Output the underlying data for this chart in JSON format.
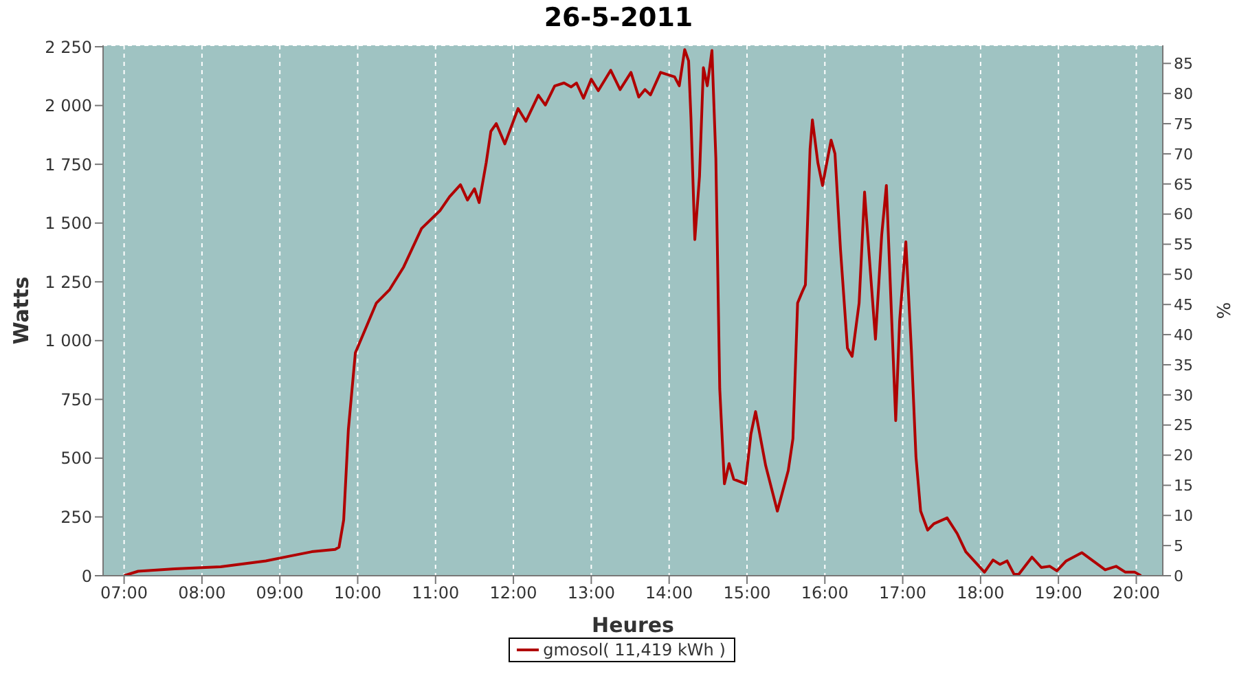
{
  "chart_data": {
    "type": "line",
    "title": "26-5-2011",
    "xlabel": "Heures",
    "ylabel": "Watts",
    "y2label": "%",
    "xlim": [
      6.73,
      20.34
    ],
    "xticks": [
      {
        "value": 7,
        "label": "07:00"
      },
      {
        "value": 8,
        "label": "08:00"
      },
      {
        "value": 9,
        "label": "09:00"
      },
      {
        "value": 10,
        "label": "10:00"
      },
      {
        "value": 11,
        "label": "11:00"
      },
      {
        "value": 12,
        "label": "12:00"
      },
      {
        "value": 13,
        "label": "13:00"
      },
      {
        "value": 14,
        "label": "14:00"
      },
      {
        "value": 15,
        "label": "15:00"
      },
      {
        "value": 16,
        "label": "16:00"
      },
      {
        "value": 17,
        "label": "17:00"
      },
      {
        "value": 18,
        "label": "18:00"
      },
      {
        "value": 19,
        "label": "19:00"
      },
      {
        "value": 20,
        "label": "20:00"
      }
    ],
    "ylim": [
      0,
      2256
    ],
    "yticks": [
      0,
      250,
      500,
      750,
      {
        "value": 1000,
        "label": "1 000"
      },
      {
        "value": 1250,
        "label": "1 250"
      },
      {
        "value": 1500,
        "label": "1 500"
      },
      {
        "value": 1750,
        "label": "1 750"
      },
      {
        "value": 2000,
        "label": "2 000"
      },
      {
        "value": 2250,
        "label": "2 250"
      }
    ],
    "y2lim": [
      0,
      88
    ],
    "y2ticks": [
      0,
      5,
      10,
      15,
      20,
      25,
      30,
      35,
      40,
      45,
      50,
      55,
      60,
      65,
      70,
      75,
      80,
      85
    ],
    "grid": true,
    "legend": "bottom",
    "marker": "none",
    "line_style": "solid",
    "series": [
      {
        "name": "gmosol( 11,419 kWh )",
        "color": "#b00000",
        "x": [
          7.0,
          7.18,
          7.65,
          8.24,
          8.82,
          9.12,
          9.41,
          9.71,
          9.76,
          9.82,
          9.88,
          9.97,
          10.24,
          10.41,
          10.59,
          10.82,
          11.06,
          11.18,
          11.32,
          11.41,
          11.5,
          11.56,
          11.65,
          11.71,
          11.78,
          11.89,
          12.06,
          12.16,
          12.32,
          12.41,
          12.53,
          12.65,
          12.74,
          12.81,
          12.9,
          13.0,
          13.09,
          13.25,
          13.37,
          13.51,
          13.61,
          13.69,
          13.76,
          13.89,
          14.07,
          14.13,
          14.2,
          14.25,
          14.28,
          14.33,
          14.39,
          14.44,
          14.49,
          14.55,
          14.6,
          14.65,
          14.71,
          14.77,
          14.83,
          14.98,
          15.05,
          15.11,
          15.24,
          15.39,
          15.53,
          15.59,
          15.65,
          15.71,
          15.75,
          15.81,
          15.84,
          15.91,
          15.97,
          16.08,
          16.13,
          16.2,
          16.29,
          16.35,
          16.44,
          16.51,
          16.58,
          16.65,
          16.73,
          16.79,
          16.88,
          16.91,
          16.96,
          17.04,
          17.11,
          17.17,
          17.23,
          17.32,
          17.4,
          17.57,
          17.7,
          17.81,
          18.05,
          18.16,
          18.25,
          18.34,
          18.43,
          18.49,
          18.66,
          18.78,
          18.89,
          18.98,
          19.1,
          19.3,
          19.6,
          19.74,
          19.86,
          19.98,
          20.06
        ],
        "values": [
          0,
          19,
          29,
          38,
          63,
          83,
          102,
          112,
          121,
          237,
          621,
          948,
          1160,
          1217,
          1313,
          1477,
          1554,
          1612,
          1663,
          1598,
          1646,
          1587,
          1756,
          1890,
          1923,
          1837,
          1987,
          1933,
          2044,
          2002,
          2083,
          2096,
          2079,
          2096,
          2031,
          2112,
          2063,
          2150,
          2068,
          2141,
          2036,
          2068,
          2045,
          2141,
          2122,
          2084,
          2238,
          2190,
          1949,
          1430,
          1699,
          2161,
          2084,
          2234,
          1776,
          795,
          391,
          477,
          410,
          391,
          602,
          698,
          468,
          275,
          448,
          583,
          1160,
          1208,
          1237,
          1814,
          1939,
          1757,
          1660,
          1853,
          1795,
          1391,
          968,
          933,
          1160,
          1632,
          1314,
          1006,
          1449,
          1660,
          910,
          660,
          1083,
          1420,
          968,
          506,
          275,
          194,
          221,
          246,
          179,
          102,
          15,
          67,
          48,
          63,
          6,
          6,
          79,
          35,
          40,
          21,
          63,
          98,
          25,
          40,
          15,
          15,
          0
        ]
      }
    ]
  }
}
